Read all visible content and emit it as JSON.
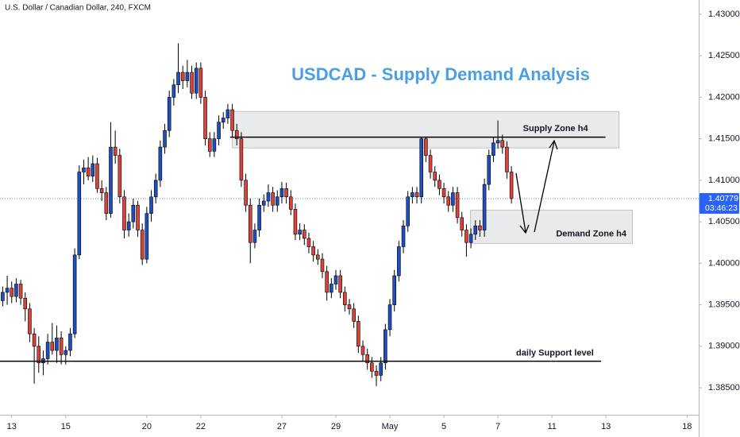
{
  "chart_data": {
    "type": "candlestick",
    "header": "U.S. Dollar / Canadian Dollar, 240, FXCM",
    "title": "USDCAD - Supply Demand Analysis",
    "up_color": "#1f4fbf",
    "down_color": "#d9433a",
    "xlim": [
      -0.6,
      154.6
    ],
    "xticks": [
      {
        "value": 2,
        "label": "13"
      },
      {
        "value": 14,
        "label": "15"
      },
      {
        "value": 32,
        "label": "20"
      },
      {
        "value": 44,
        "label": "22"
      },
      {
        "value": 62,
        "label": "27"
      },
      {
        "value": 74,
        "label": "29"
      },
      {
        "value": 86,
        "label": "May"
      },
      {
        "value": 98,
        "label": "5"
      },
      {
        "value": 110,
        "label": "7"
      },
      {
        "value": 122,
        "label": "11"
      },
      {
        "value": 134,
        "label": "13"
      },
      {
        "value": 152,
        "label": "18"
      }
    ],
    "ylim": [
      1.38175,
      1.43172
    ],
    "yticks": [
      {
        "value": 1.385,
        "label": "1.38500"
      },
      {
        "value": 1.39,
        "label": "1.39000"
      },
      {
        "value": 1.395,
        "label": "1.39500"
      },
      {
        "value": 1.4,
        "label": "1.40000"
      },
      {
        "value": 1.405,
        "label": "1.40500"
      },
      {
        "value": 1.41,
        "label": "1.41000"
      },
      {
        "value": 1.415,
        "label": "1.41500"
      },
      {
        "value": 1.42,
        "label": "1.42000"
      },
      {
        "value": 1.425,
        "label": "1.42500"
      },
      {
        "value": 1.43,
        "label": "1.43000"
      }
    ],
    "x": [
      0,
      1,
      2,
      3,
      4,
      5,
      6,
      7,
      8,
      9,
      10,
      11,
      12,
      13,
      14,
      15,
      16,
      17,
      18,
      19,
      20,
      21,
      22,
      23,
      24,
      25,
      26,
      27,
      28,
      29,
      30,
      31,
      32,
      33,
      34,
      35,
      36,
      37,
      38,
      39,
      40,
      41,
      42,
      43,
      44,
      45,
      46,
      47,
      48,
      49,
      50,
      51,
      52,
      53,
      54,
      55,
      56,
      57,
      58,
      59,
      60,
      61,
      62,
      63,
      64,
      65,
      66,
      67,
      68,
      69,
      70,
      71,
      72,
      73,
      74,
      75,
      76,
      77,
      78,
      79,
      80,
      81,
      82,
      83,
      84,
      85,
      86,
      87,
      88,
      89,
      90,
      91,
      92,
      93,
      94,
      95,
      96,
      97,
      98,
      99,
      100,
      101,
      102,
      103,
      104,
      105,
      106,
      107,
      108,
      109,
      110,
      111,
      112,
      113
    ],
    "open": [
      1.3955,
      1.3965,
      1.397,
      1.396,
      1.3975,
      1.3958,
      1.3945,
      1.3915,
      1.39,
      1.388,
      1.3885,
      1.3905,
      1.3895,
      1.391,
      1.389,
      1.3895,
      1.3915,
      1.401,
      1.411,
      1.4115,
      1.4105,
      1.412,
      1.409,
      1.4085,
      1.406,
      1.414,
      1.413,
      1.408,
      1.404,
      1.405,
      1.407,
      1.404,
      1.4005,
      1.406,
      1.408,
      1.41,
      1.414,
      1.416,
      1.42,
      1.4215,
      1.423,
      1.422,
      1.423,
      1.4205,
      1.4235,
      1.42,
      1.415,
      1.4135,
      1.415,
      1.417,
      1.4175,
      1.4185,
      1.416,
      1.415,
      1.41,
      1.407,
      1.4025,
      1.404,
      1.407,
      1.4075,
      1.4085,
      1.407,
      1.408,
      1.409,
      1.408,
      1.4065,
      1.4035,
      1.404,
      1.403,
      1.402,
      1.401,
      1.4005,
      1.399,
      1.3965,
      1.3975,
      1.3985,
      1.3965,
      1.395,
      1.3945,
      1.393,
      1.39,
      1.389,
      1.388,
      1.387,
      1.3865,
      1.388,
      1.392,
      1.395,
      1.3985,
      1.402,
      1.4045,
      1.408,
      1.4085,
      1.408,
      1.415,
      1.413,
      1.411,
      1.41,
      1.409,
      1.408,
      1.407,
      1.4085,
      1.4055,
      1.404,
      1.4025,
      1.4035,
      1.4045,
      1.404,
      1.4095,
      1.413,
      1.4145,
      1.4148,
      1.414,
      1.411
    ],
    "high": [
      1.3972,
      1.3985,
      1.3978,
      1.3982,
      1.398,
      1.3965,
      1.3952,
      1.3922,
      1.3912,
      1.3895,
      1.3915,
      1.3928,
      1.3925,
      1.3918,
      1.39,
      1.3922,
      1.4018,
      1.4118,
      1.4125,
      1.4128,
      1.413,
      1.4127,
      1.41,
      1.4092,
      1.417,
      1.416,
      1.4138,
      1.4088,
      1.406,
      1.4078,
      1.4075,
      1.4048,
      1.4068,
      1.4088,
      1.4108,
      1.4148,
      1.4168,
      1.4208,
      1.4222,
      1.4265,
      1.4238,
      1.4245,
      1.4238,
      1.4242,
      1.4242,
      1.4208,
      1.4158,
      1.4158,
      1.4178,
      1.4182,
      1.4192,
      1.4192,
      1.4168,
      1.4158,
      1.4108,
      1.4078,
      1.4048,
      1.4078,
      1.4083,
      1.4095,
      1.4092,
      1.4088,
      1.4098,
      1.4097,
      1.4088,
      1.4072,
      1.4048,
      1.4047,
      1.4037,
      1.4027,
      1.4017,
      1.4012,
      1.3997,
      1.3982,
      1.3992,
      1.3992,
      1.3972,
      1.3957,
      1.3952,
      1.3937,
      1.3907,
      1.3897,
      1.3887,
      1.3877,
      1.3887,
      1.3927,
      1.3957,
      1.3992,
      1.4027,
      1.4052,
      1.4087,
      1.4092,
      1.4092,
      1.4152,
      1.4152,
      1.4137,
      1.4117,
      1.4107,
      1.4097,
      1.4087,
      1.4092,
      1.4092,
      1.4062,
      1.4047,
      1.4042,
      1.4052,
      1.4052,
      1.4102,
      1.4137,
      1.4152,
      1.4172,
      1.4155,
      1.4147,
      1.4117
    ],
    "low": [
      1.3948,
      1.395,
      1.3952,
      1.3953,
      1.395,
      1.393,
      1.3905,
      1.3855,
      1.3868,
      1.3865,
      1.3878,
      1.389,
      1.388,
      1.3878,
      1.3878,
      1.3888,
      1.391,
      1.4005,
      1.4095,
      1.41,
      1.4098,
      1.4085,
      1.4075,
      1.4052,
      1.4055,
      1.412,
      1.4072,
      1.403,
      1.4032,
      1.4042,
      1.4032,
      1.3998,
      1.4,
      1.405,
      1.4072,
      1.4092,
      1.4132,
      1.4152,
      1.419,
      1.4205,
      1.421,
      1.4212,
      1.4198,
      1.4198,
      1.4192,
      1.4142,
      1.4128,
      1.4128,
      1.4142,
      1.4162,
      1.4168,
      1.4152,
      1.4142,
      1.4092,
      1.4062,
      1.4,
      1.4018,
      1.4032,
      1.4062,
      1.4068,
      1.4062,
      1.4062,
      1.4072,
      1.4072,
      1.4058,
      1.4028,
      1.4028,
      1.4022,
      1.4012,
      1.4002,
      1.3998,
      1.3982,
      1.3955,
      1.3958,
      1.3968,
      1.3958,
      1.3942,
      1.3938,
      1.3922,
      1.3892,
      1.3882,
      1.3872,
      1.3862,
      1.3852,
      1.3858,
      1.3872,
      1.3912,
      1.3942,
      1.3978,
      1.4012,
      1.4038,
      1.4072,
      1.4072,
      1.4072,
      1.4122,
      1.4102,
      1.4092,
      1.4082,
      1.4072,
      1.4062,
      1.4062,
      1.4048,
      1.4032,
      1.4008,
      1.4018,
      1.4028,
      1.4032,
      1.4032,
      1.4088,
      1.4122,
      1.4138,
      1.4132,
      1.4102,
      1.4072
    ],
    "close": [
      1.3965,
      1.397,
      1.396,
      1.3975,
      1.3958,
      1.3945,
      1.3915,
      1.39,
      1.388,
      1.3885,
      1.3905,
      1.3895,
      1.391,
      1.389,
      1.3895,
      1.3915,
      1.401,
      1.411,
      1.4115,
      1.4105,
      1.412,
      1.409,
      1.4085,
      1.406,
      1.414,
      1.413,
      1.408,
      1.404,
      1.405,
      1.407,
      1.404,
      1.4005,
      1.406,
      1.408,
      1.41,
      1.414,
      1.416,
      1.42,
      1.4215,
      1.423,
      1.422,
      1.423,
      1.4205,
      1.4235,
      1.42,
      1.415,
      1.4135,
      1.415,
      1.417,
      1.4175,
      1.4185,
      1.416,
      1.415,
      1.41,
      1.407,
      1.4025,
      1.404,
      1.407,
      1.4075,
      1.4085,
      1.407,
      1.408,
      1.409,
      1.408,
      1.4065,
      1.4035,
      1.404,
      1.403,
      1.402,
      1.401,
      1.4005,
      1.399,
      1.3965,
      1.3975,
      1.3985,
      1.3965,
      1.395,
      1.3945,
      1.393,
      1.39,
      1.389,
      1.388,
      1.387,
      1.3865,
      1.388,
      1.392,
      1.395,
      1.3985,
      1.402,
      1.4045,
      1.408,
      1.4085,
      1.408,
      1.415,
      1.413,
      1.411,
      1.41,
      1.409,
      1.408,
      1.407,
      1.4085,
      1.4055,
      1.404,
      1.4025,
      1.4035,
      1.4045,
      1.404,
      1.4095,
      1.413,
      1.4145,
      1.4148,
      1.414,
      1.411,
      1.4078
    ],
    "zones": [
      {
        "label": "Supply Zone h4",
        "ylim": [
          1.4139,
          1.4183
        ],
        "xlim": [
          51.0,
          136.9
        ]
      },
      {
        "label": "Demand Zone h4",
        "ylim": [
          1.4024,
          1.4064
        ],
        "xlim": [
          103.9,
          139.9
        ]
      }
    ],
    "lines": [
      {
        "value": 1.4152,
        "xlim": [
          50.5,
          133.9
        ]
      },
      {
        "label": "daily Support level",
        "value": 1.3882,
        "xlim": [
          -0.6,
          132.9
        ]
      }
    ],
    "last_price": 1.40779,
    "countdown": "03:46:23"
  }
}
